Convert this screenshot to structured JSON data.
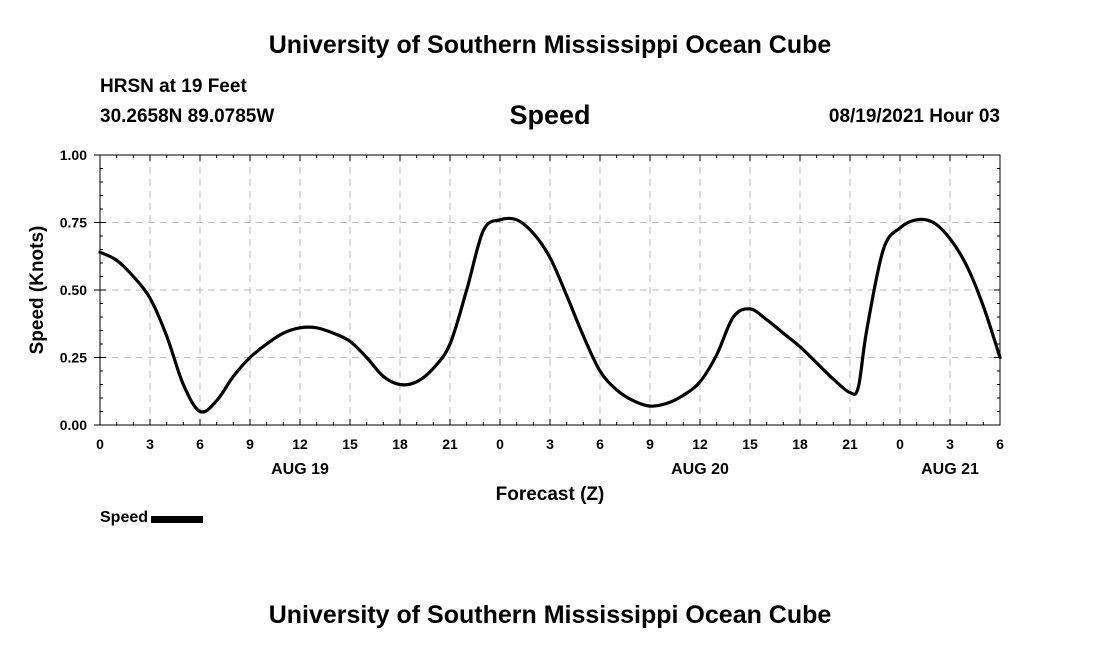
{
  "header": {
    "title": "University of Southern Mississippi Ocean Cube",
    "station": "HRSN at 19 Feet",
    "coordinates": "30.2658N  89.0785W",
    "datetime": "08/19/2021 Hour 03"
  },
  "footer": {
    "title": "University of Southern Mississippi Ocean Cube"
  },
  "legend": {
    "label": "Speed",
    "line_color": "#000000"
  },
  "chart_data": {
    "type": "line",
    "title": "Speed",
    "xlabel": "Forecast (Z)",
    "ylabel": "Speed (Knots)",
    "xlim": [
      0,
      54
    ],
    "ylim": [
      0,
      1.0
    ],
    "grid": true,
    "x_ticks": [
      {
        "x": 0,
        "label": "0"
      },
      {
        "x": 3,
        "label": "3"
      },
      {
        "x": 6,
        "label": "6"
      },
      {
        "x": 9,
        "label": "9"
      },
      {
        "x": 12,
        "label": "12"
      },
      {
        "x": 15,
        "label": "15"
      },
      {
        "x": 18,
        "label": "18"
      },
      {
        "x": 21,
        "label": "21"
      },
      {
        "x": 24,
        "label": "0"
      },
      {
        "x": 27,
        "label": "3"
      },
      {
        "x": 30,
        "label": "6"
      },
      {
        "x": 33,
        "label": "9"
      },
      {
        "x": 36,
        "label": "12"
      },
      {
        "x": 39,
        "label": "15"
      },
      {
        "x": 42,
        "label": "18"
      },
      {
        "x": 45,
        "label": "21"
      },
      {
        "x": 48,
        "label": "0"
      },
      {
        "x": 51,
        "label": "3"
      },
      {
        "x": 54,
        "label": "6"
      }
    ],
    "date_labels": [
      {
        "x": 12,
        "label": "AUG 19"
      },
      {
        "x": 36,
        "label": "AUG 20"
      },
      {
        "x": 51,
        "label": "AUG 21"
      }
    ],
    "y_ticks": [
      {
        "y": 0.0,
        "label": "0.00"
      },
      {
        "y": 0.25,
        "label": "0.25"
      },
      {
        "y": 0.5,
        "label": "0.50"
      },
      {
        "y": 0.75,
        "label": "0.75"
      },
      {
        "y": 1.0,
        "label": "1.00"
      }
    ],
    "series": [
      {
        "name": "Speed",
        "color": "#000000",
        "x": [
          0,
          1,
          2,
          3,
          4,
          5,
          6,
          7,
          8,
          9,
          10,
          11,
          12,
          13,
          14,
          15,
          16,
          17,
          18,
          19,
          20,
          21,
          22,
          23,
          24,
          25,
          26,
          27,
          28,
          29,
          30,
          31,
          32,
          33,
          34,
          35,
          36,
          37,
          38,
          39,
          40,
          41,
          42,
          43,
          44,
          45,
          45.5,
          46,
          47,
          48,
          49,
          50,
          51,
          52,
          53,
          54
        ],
        "y": [
          0.64,
          0.61,
          0.55,
          0.47,
          0.33,
          0.15,
          0.05,
          0.09,
          0.18,
          0.25,
          0.3,
          0.34,
          0.36,
          0.36,
          0.34,
          0.31,
          0.25,
          0.18,
          0.15,
          0.16,
          0.21,
          0.3,
          0.5,
          0.72,
          0.76,
          0.76,
          0.71,
          0.62,
          0.48,
          0.33,
          0.2,
          0.13,
          0.09,
          0.07,
          0.08,
          0.11,
          0.16,
          0.26,
          0.4,
          0.43,
          0.39,
          0.34,
          0.29,
          0.23,
          0.17,
          0.12,
          0.14,
          0.35,
          0.65,
          0.73,
          0.76,
          0.75,
          0.69,
          0.59,
          0.44,
          0.25
        ]
      }
    ]
  }
}
